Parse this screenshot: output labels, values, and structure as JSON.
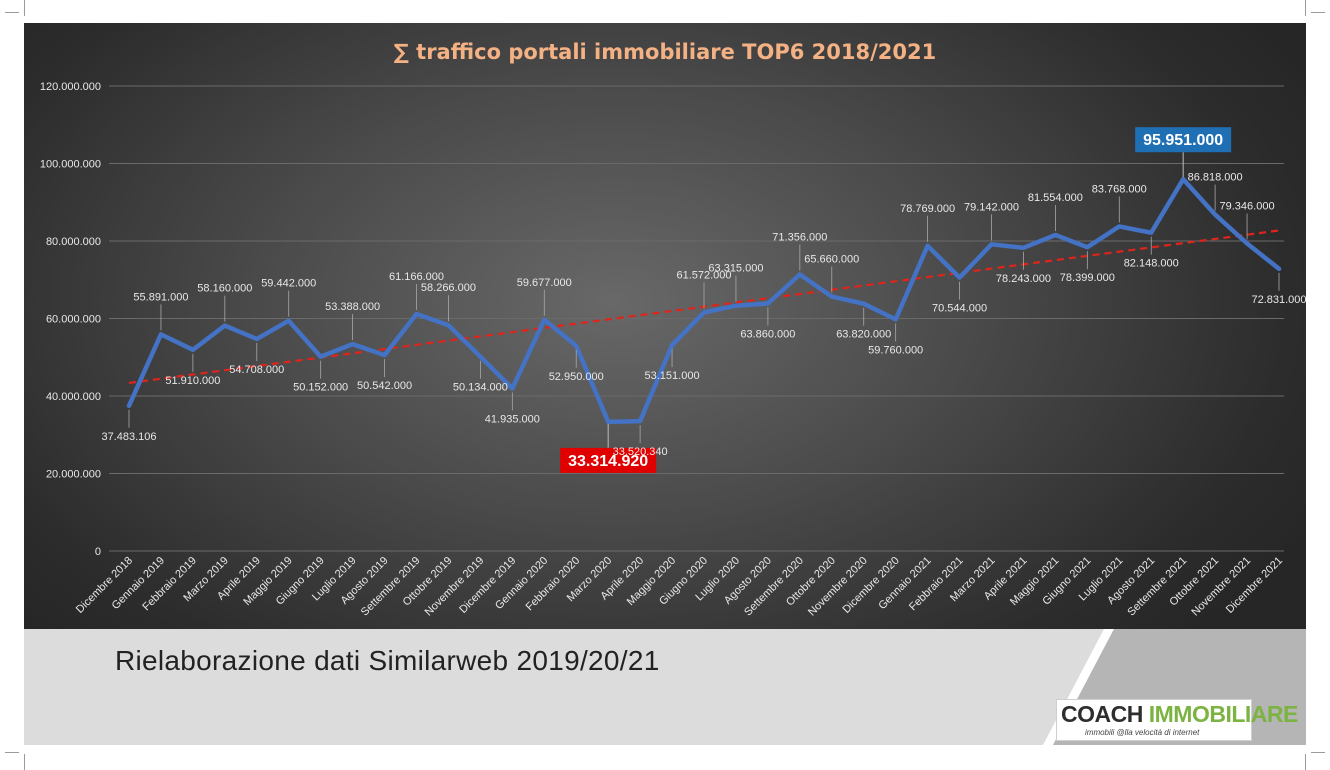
{
  "chart_data": {
    "type": "line",
    "title": "∑ traffico portali immobiliare TOP6 2018/2021",
    "ylim": [
      0,
      120000000
    ],
    "yticks": [
      0,
      20000000,
      40000000,
      60000000,
      80000000,
      100000000,
      120000000
    ],
    "ytick_labels": [
      "0",
      "20.000.000",
      "40.000.000",
      "60.000.000",
      "80.000.000",
      "100.000.000",
      "120.000.000"
    ],
    "grid": true,
    "categories": [
      "Dicembre 2018",
      "Gennaio 2019",
      "Febbraio 2019",
      "Marzo 2019",
      "Aprile 2019",
      "Maggio 2019",
      "Giugno 2019",
      "Luglio 2019",
      "Agosto 2019",
      "Settembre 2019",
      "Ottobre 2019",
      "Novembre 2019",
      "Dicembre 2019",
      "Gennaio 2020",
      "Febbraio 2020",
      "Marzo 2020",
      "Aprile 2020",
      "Maggio 2020",
      "Giugno 2020",
      "Luglio 2020",
      "Agosto 2020",
      "Settembre 2020",
      "Ottobre 2020",
      "Novembre 2020",
      "Dicembre 2020",
      "Gennaio 2021",
      "Febbraio 2021",
      "Marzo 2021",
      "Aprile 2021",
      "Maggio 2021",
      "Giugno 2021",
      "Luglio 2021",
      "Agosto 2021",
      "Settembre 2021",
      "Ottobre 2021",
      "Novembre 2021",
      "Dicembre 2021"
    ],
    "values": [
      37483106,
      55891000,
      51910000,
      58160000,
      54708000,
      59442000,
      50152000,
      53388000,
      50542000,
      61166000,
      58266000,
      50134000,
      41935000,
      59677000,
      52950000,
      33314920,
      33520340,
      53151000,
      61572000,
      63315000,
      63860000,
      71356000,
      65660000,
      63820000,
      59760000,
      78769000,
      70544000,
      79142000,
      78243000,
      81554000,
      78399000,
      83768000,
      82148000,
      95951000,
      86818000,
      79346000,
      72831000
    ],
    "data_labels": [
      "37.483.106",
      "55.891.000",
      "51.910.000",
      "58.160.000",
      "54.708.000",
      "59.442.000",
      "50.152.000",
      "53.388.000",
      "50.542.000",
      "61.166.000",
      "58.266.000",
      "50.134.000",
      "41.935.000",
      "59.677.000",
      "52.950.000",
      "33.314.920",
      "33.520.340",
      "53.151.000",
      "61.572.000",
      "63.315.000",
      "63.860.000",
      "71.356.000",
      "65.660.000",
      "63.820.000",
      "59.760.000",
      "78.769.000",
      "70.544.000",
      "79.142.000",
      "78.243.000",
      "81.554.000",
      "78.399.000",
      "83.768.000",
      "82.148.000",
      "95.951.000",
      "86.818.000",
      "79.346.000",
      "72.831.000"
    ],
    "highlight_min_index": 15,
    "highlight_max_index": 33,
    "trendline": true,
    "colors": {
      "line": "#4472c4",
      "trend": "#e0241b",
      "title": "#f4b183",
      "min_label_bg": "#e00000",
      "max_label_bg": "#1f6fb5",
      "label_text": "#e8e8e8"
    }
  },
  "footer": {
    "caption": "Rielaborazione dati Similarweb 2019/20/21"
  },
  "logo": {
    "coach": "COACH ",
    "immobiliare": "IMMOBILIARE",
    "tagline": "immobili @lla velocità di internet"
  }
}
